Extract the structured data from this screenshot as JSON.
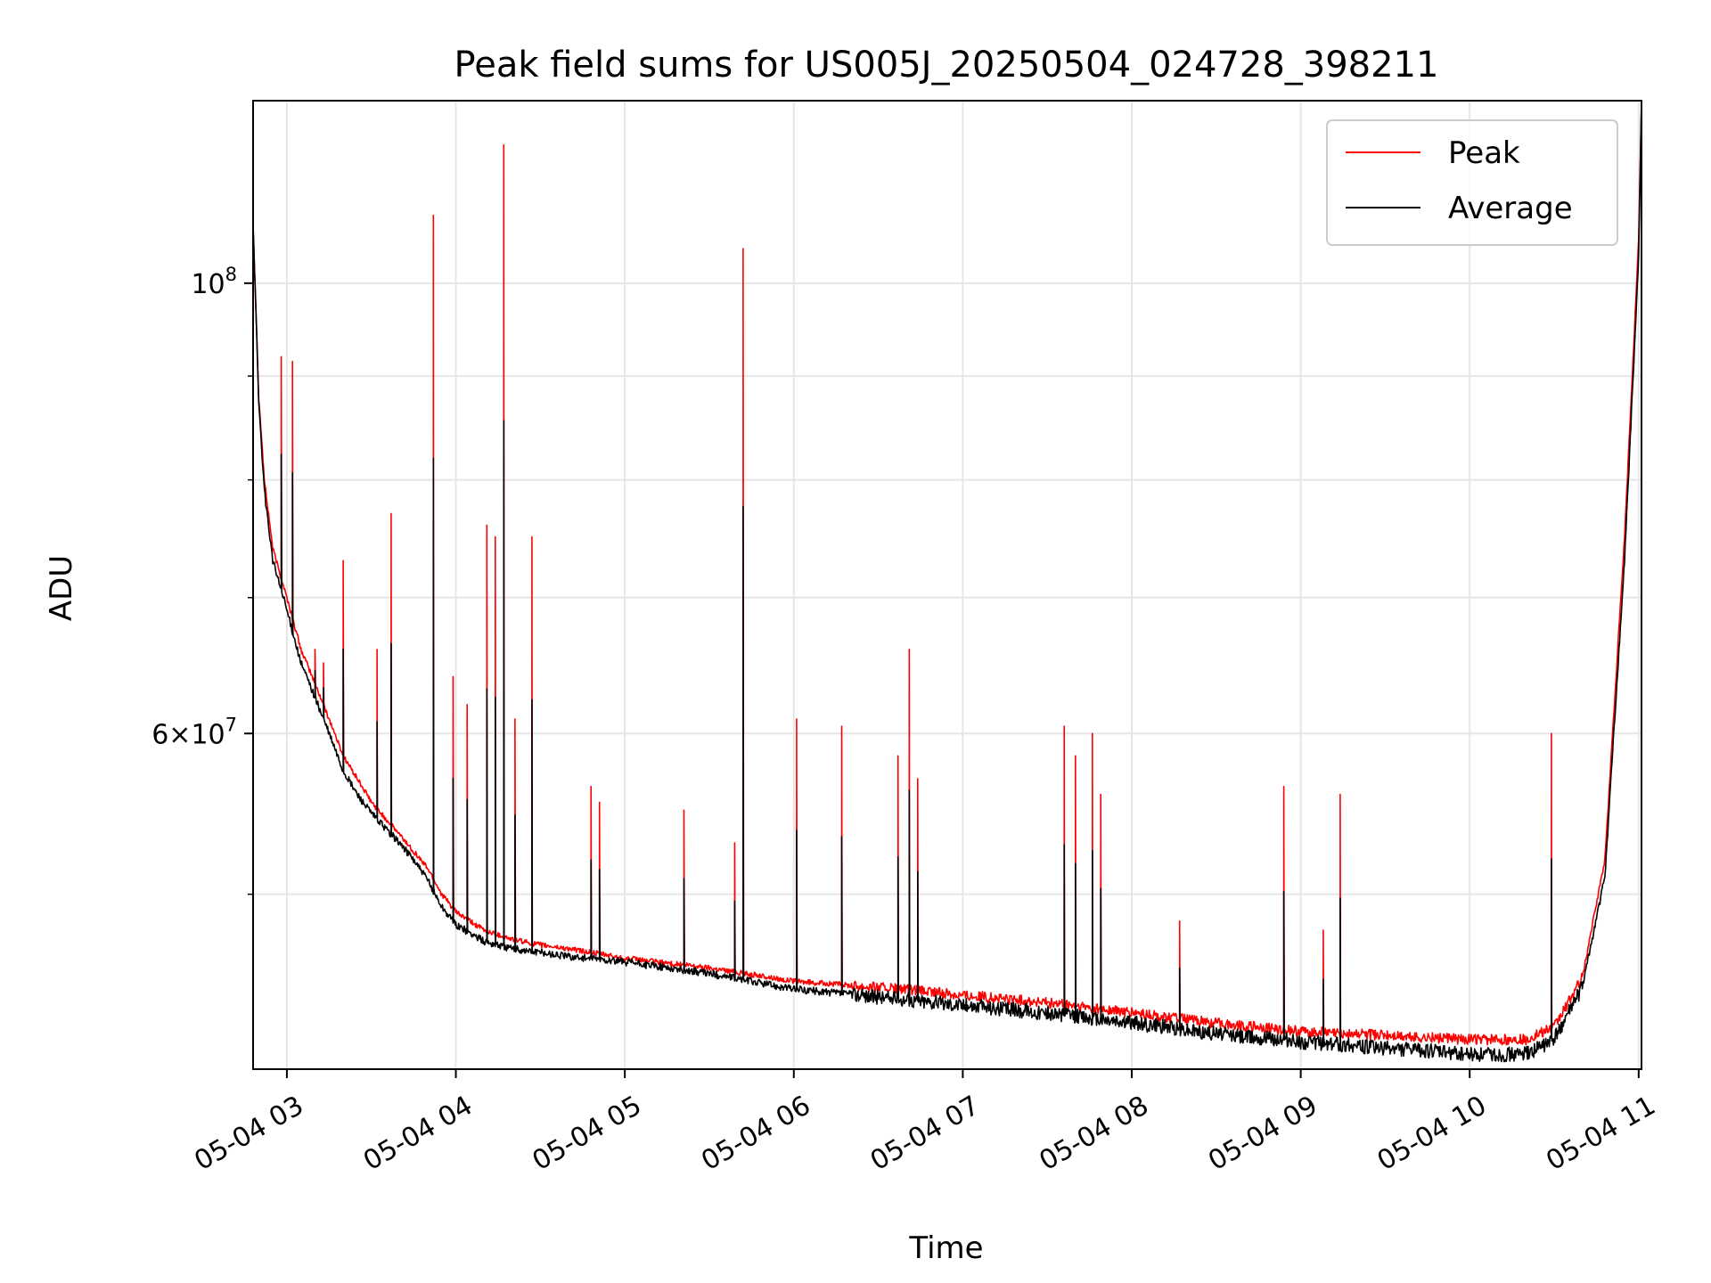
{
  "chart_data": {
    "type": "line",
    "title": "Peak field sums for US005J_20250504_024728_398211",
    "xlabel": "Time",
    "ylabel": "ADU",
    "yscale": "log",
    "ylim": [
      41000000,
      123000000
    ],
    "xlim": [
      "2025-05-04 02:48",
      "2025-05-04 11:01"
    ],
    "grid": true,
    "legend": "upper right",
    "x_ticks": [
      "05-04 03",
      "05-04 04",
      "05-04 05",
      "05-04 06",
      "05-04 07",
      "05-04 08",
      "05-04 09",
      "05-04 10",
      "05-04 11"
    ],
    "y_ticks": [
      {
        "value": 100000000,
        "base": "10",
        "exp": "8"
      },
      {
        "value": 60000000,
        "mant": "6",
        "base": "10",
        "exp": "7"
      }
    ],
    "colors": {
      "peak": "#ff0000",
      "average": "#000000",
      "grid": "#e6e6e6"
    },
    "series": [
      {
        "name": "Peak",
        "x": [
          "02:48",
          "02:50",
          "02:52",
          "02:55",
          "03:00",
          "03:05",
          "03:10",
          "03:15",
          "03:20",
          "03:25",
          "03:30",
          "03:40",
          "03:45",
          "03:50",
          "03:55",
          "04:00",
          "04:10",
          "04:20",
          "04:30",
          "04:40",
          "05:00",
          "05:30",
          "06:00",
          "06:30",
          "07:00",
          "07:30",
          "08:00",
          "08:30",
          "09:00",
          "09:30",
          "10:00",
          "10:20",
          "10:30",
          "10:40",
          "10:48",
          "10:55",
          "11:00",
          "11:01"
        ],
        "y": [
          107000000,
          88000000,
          80000000,
          74000000,
          70000000,
          66000000,
          63500000,
          61000000,
          58500000,
          57000000,
          55500000,
          53500000,
          52500000,
          51500000,
          50000000,
          49000000,
          48000000,
          47500000,
          47200000,
          47000000,
          46500000,
          46000000,
          45300000,
          45000000,
          44600000,
          44200000,
          43700000,
          43200000,
          42800000,
          42600000,
          42400000,
          42400000,
          43000000,
          45500000,
          52000000,
          75000000,
          105000000,
          123000000
        ]
      },
      {
        "name": "Average",
        "x": [
          "02:48",
          "02:50",
          "02:52",
          "02:55",
          "03:00",
          "03:05",
          "03:10",
          "03:15",
          "03:20",
          "03:25",
          "03:30",
          "03:40",
          "03:45",
          "03:50",
          "03:55",
          "04:00",
          "04:10",
          "04:20",
          "04:30",
          "04:40",
          "05:00",
          "05:30",
          "06:00",
          "06:30",
          "07:00",
          "07:30",
          "08:00",
          "08:30",
          "09:00",
          "09:30",
          "10:00",
          "10:20",
          "10:30",
          "10:40",
          "10:48",
          "10:55",
          "11:00",
          "11:01"
        ],
        "y": [
          107000000,
          87500000,
          79000000,
          73000000,
          69000000,
          65000000,
          62500000,
          60000000,
          57500000,
          56000000,
          54800000,
          53000000,
          52000000,
          50800000,
          49300000,
          48300000,
          47400000,
          47000000,
          46800000,
          46600000,
          46300000,
          45700000,
          44900000,
          44500000,
          44100000,
          43700000,
          43200000,
          42700000,
          42300000,
          42000000,
          41700000,
          41700000,
          42400000,
          45000000,
          51000000,
          73000000,
          103000000,
          123000000
        ]
      }
    ],
    "spikes": [
      {
        "x": "02:58",
        "y": 92000000
      },
      {
        "x": "03:02",
        "y": 91500000
      },
      {
        "x": "03:10",
        "y": 66000000
      },
      {
        "x": "03:13",
        "y": 65000000
      },
      {
        "x": "03:20",
        "y": 73000000
      },
      {
        "x": "03:32",
        "y": 66000000
      },
      {
        "x": "03:37",
        "y": 77000000
      },
      {
        "x": "03:52",
        "y": 108000000
      },
      {
        "x": "03:59",
        "y": 64000000
      },
      {
        "x": "04:04",
        "y": 62000000
      },
      {
        "x": "04:11",
        "y": 76000000
      },
      {
        "x": "04:14",
        "y": 75000000
      },
      {
        "x": "04:17",
        "y": 117000000
      },
      {
        "x": "04:21",
        "y": 61000000
      },
      {
        "x": "04:27",
        "y": 75000000
      },
      {
        "x": "04:48",
        "y": 56500000
      },
      {
        "x": "04:51",
        "y": 55500000
      },
      {
        "x": "05:21",
        "y": 55000000
      },
      {
        "x": "05:39",
        "y": 53000000
      },
      {
        "x": "05:42",
        "y": 104000000
      },
      {
        "x": "06:01",
        "y": 61000000
      },
      {
        "x": "06:17",
        "y": 60500000
      },
      {
        "x": "06:37",
        "y": 58500000
      },
      {
        "x": "06:41",
        "y": 66000000
      },
      {
        "x": "06:44",
        "y": 57000000
      },
      {
        "x": "07:36",
        "y": 60500000
      },
      {
        "x": "07:40",
        "y": 58500000
      },
      {
        "x": "07:46",
        "y": 60000000
      },
      {
        "x": "07:49",
        "y": 56000000
      },
      {
        "x": "08:17",
        "y": 48500000
      },
      {
        "x": "08:54",
        "y": 56500000
      },
      {
        "x": "09:08",
        "y": 48000000
      },
      {
        "x": "09:14",
        "y": 56000000
      },
      {
        "x": "10:29",
        "y": 60000000
      }
    ]
  }
}
